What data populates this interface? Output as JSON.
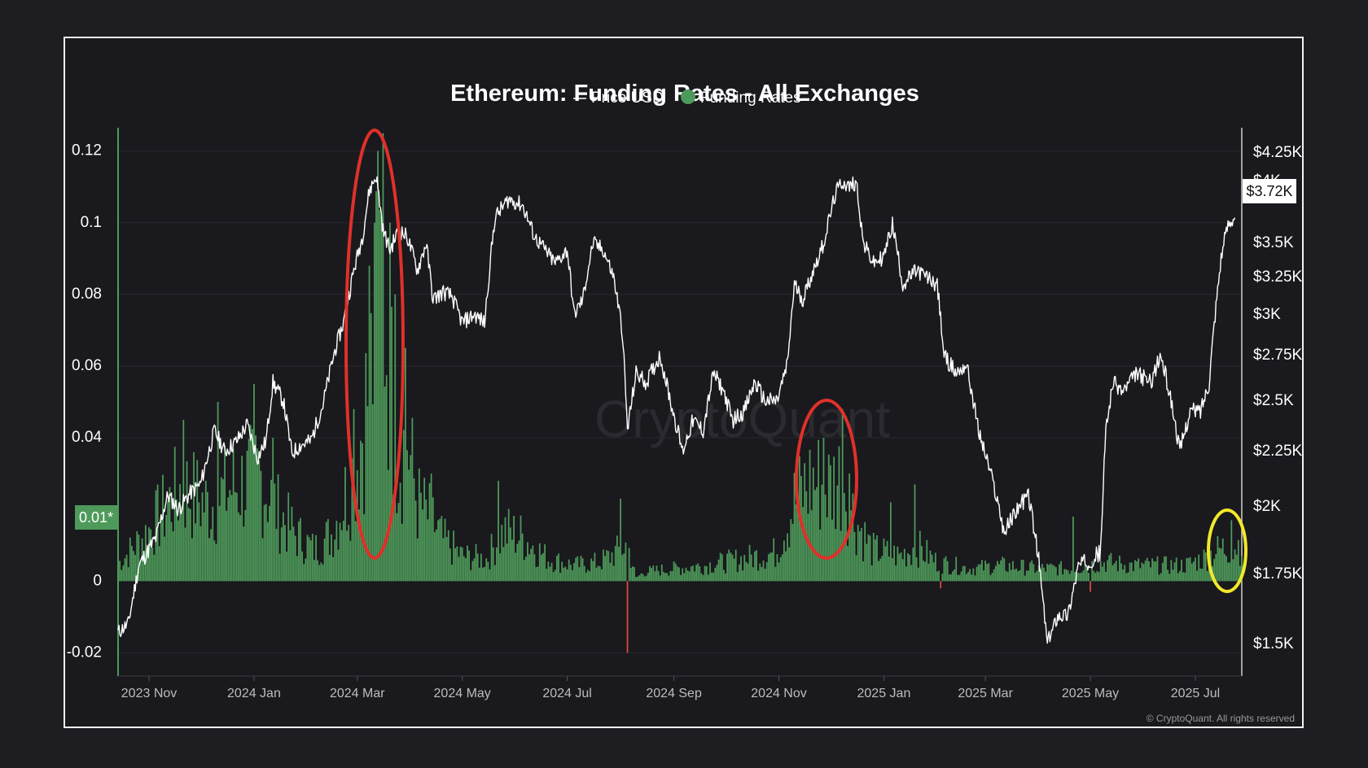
{
  "chart_data": {
    "type": "bar",
    "title": "Ethereum: Funding Rates - All Exchanges",
    "legend": [
      {
        "name": "Price USD",
        "color": "#ffffff",
        "marker": "line"
      },
      {
        "name": "Funding Rates",
        "color": "#4e9a5a",
        "marker": "dot"
      }
    ],
    "left_axis": {
      "ticks": [
        "0.12",
        "0.1",
        "0.08",
        "0.06",
        "0.04",
        "0",
        "-0.02"
      ],
      "tick_values": [
        0.12,
        0.1,
        0.08,
        0.06,
        0.04,
        0,
        -0.02
      ],
      "range": [
        -0.0265,
        0.1265
      ]
    },
    "right_axis": {
      "ticks": [
        "$4.25K",
        "$4K",
        "$3.5K",
        "$3.25K",
        "$3K",
        "$2.75K",
        "$2.5K",
        "$2.25K",
        "$2K",
        "$1.75K",
        "$1.5K"
      ],
      "tick_values": [
        4250,
        4000,
        3500,
        3250,
        3000,
        2750,
        2500,
        2250,
        2000,
        1750,
        1500
      ]
    },
    "x_ticks": [
      "2023 Nov",
      "2024 Jan",
      "2024 Mar",
      "2024 May",
      "2024 Jul",
      "2024 Sep",
      "2024 Nov",
      "2025 Jan",
      "2025 Mar",
      "2025 May",
      "2025 Jul"
    ],
    "x_tick_dates": [
      "2023-11-01",
      "2024-01-01",
      "2024-03-01",
      "2024-05-01",
      "2024-07-01",
      "2024-09-01",
      "2024-11-01",
      "2025-01-01",
      "2025-03-01",
      "2025-05-01",
      "2025-07-01"
    ],
    "x_range": [
      "2023-10-14",
      "2025-07-28"
    ],
    "reference_badge": "0.01*",
    "price_badge": "$3.72K",
    "funding_anchors": [
      [
        "2023-10-15",
        0.006
      ],
      [
        "2023-11-01",
        0.016
      ],
      [
        "2023-11-20",
        0.03
      ],
      [
        "2023-12-05",
        0.024
      ],
      [
        "2023-12-20",
        0.03
      ],
      [
        "2024-01-05",
        0.033
      ],
      [
        "2024-01-15",
        0.022
      ],
      [
        "2024-01-25",
        0.015
      ],
      [
        "2024-02-05",
        0.01
      ],
      [
        "2024-02-15",
        0.015
      ],
      [
        "2024-02-25",
        0.03
      ],
      [
        "2024-03-01",
        0.04
      ],
      [
        "2024-03-05",
        0.052
      ],
      [
        "2024-03-10",
        0.07
      ],
      [
        "2024-03-15",
        0.1
      ],
      [
        "2024-03-20",
        0.065
      ],
      [
        "2024-03-25",
        0.04
      ],
      [
        "2024-03-30",
        0.045
      ],
      [
        "2024-04-05",
        0.025
      ],
      [
        "2024-04-12",
        0.02
      ],
      [
        "2024-04-20",
        0.013
      ],
      [
        "2024-05-01",
        0.008
      ],
      [
        "2024-05-15",
        0.007
      ],
      [
        "2024-05-25",
        0.016
      ],
      [
        "2024-06-05",
        0.014
      ],
      [
        "2024-06-20",
        0.007
      ],
      [
        "2024-07-05",
        0.005
      ],
      [
        "2024-07-20",
        0.006
      ],
      [
        "2024-08-01",
        0.01
      ],
      [
        "2024-08-05",
        0.012
      ],
      [
        "2024-08-10",
        0.001
      ],
      [
        "2024-08-15",
        0.003
      ],
      [
        "2024-09-01",
        0.004
      ],
      [
        "2024-09-20",
        0.005
      ],
      [
        "2024-10-10",
        0.007
      ],
      [
        "2024-10-30",
        0.009
      ],
      [
        "2024-11-10",
        0.025
      ],
      [
        "2024-11-20",
        0.032
      ],
      [
        "2024-12-01",
        0.03
      ],
      [
        "2024-12-08",
        0.034
      ],
      [
        "2024-12-15",
        0.02
      ],
      [
        "2024-12-25",
        0.01
      ],
      [
        "2025-01-10",
        0.008
      ],
      [
        "2025-01-20",
        0.011
      ],
      [
        "2025-02-01",
        0.006
      ],
      [
        "2025-02-20",
        0.004
      ],
      [
        "2025-03-10",
        0.005
      ],
      [
        "2025-04-01",
        0.004
      ],
      [
        "2025-04-20",
        0.004
      ],
      [
        "2025-05-10",
        0.006
      ],
      [
        "2025-05-25",
        0.005
      ],
      [
        "2025-06-10",
        0.005
      ],
      [
        "2025-06-25",
        0.005
      ],
      [
        "2025-07-05",
        0.007
      ],
      [
        "2025-07-15",
        0.01
      ],
      [
        "2025-07-27",
        0.012
      ]
    ],
    "funding_spikes": [
      [
        "2023-11-21",
        0.045
      ],
      [
        "2023-12-11",
        0.05
      ],
      [
        "2024-01-01",
        0.055
      ],
      [
        "2024-01-12",
        0.04
      ],
      [
        "2024-02-28",
        0.048
      ],
      [
        "2024-03-08",
        0.088
      ],
      [
        "2024-03-11",
        0.1
      ],
      [
        "2024-03-13",
        0.12
      ],
      [
        "2024-03-16",
        0.125
      ],
      [
        "2024-03-20",
        0.1
      ],
      [
        "2024-03-23",
        0.08
      ],
      [
        "2024-03-29",
        0.065
      ],
      [
        "2024-04-13",
        0.03
      ],
      [
        "2024-05-22",
        0.028
      ],
      [
        "2024-08-01",
        0.023
      ],
      [
        "2024-08-05",
        -0.02
      ],
      [
        "2024-11-27",
        0.04
      ],
      [
        "2024-12-08",
        0.048
      ],
      [
        "2024-12-12",
        0.03
      ],
      [
        "2025-01-05",
        0.022
      ],
      [
        "2025-01-19",
        0.027
      ],
      [
        "2025-02-03",
        -0.002
      ],
      [
        "2025-04-21",
        0.018
      ],
      [
        "2025-05-01",
        -0.003
      ],
      [
        "2025-07-22",
        0.017
      ]
    ],
    "price_anchors": [
      [
        "2023-10-14",
        1540
      ],
      [
        "2023-10-20",
        1570
      ],
      [
        "2023-10-26",
        1780
      ],
      [
        "2023-11-05",
        1880
      ],
      [
        "2023-11-12",
        2050
      ],
      [
        "2023-11-18",
        1990
      ],
      [
        "2023-11-25",
        2060
      ],
      [
        "2023-12-01",
        2100
      ],
      [
        "2023-12-09",
        2350
      ],
      [
        "2023-12-15",
        2250
      ],
      [
        "2023-12-22",
        2300
      ],
      [
        "2023-12-28",
        2380
      ],
      [
        "2024-01-03",
        2220
      ],
      [
        "2024-01-08",
        2300
      ],
      [
        "2024-01-12",
        2600
      ],
      [
        "2024-01-18",
        2500
      ],
      [
        "2024-01-23",
        2240
      ],
      [
        "2024-01-28",
        2280
      ],
      [
        "2024-02-03",
        2300
      ],
      [
        "2024-02-10",
        2480
      ],
      [
        "2024-02-17",
        2780
      ],
      [
        "2024-02-22",
        2950
      ],
      [
        "2024-02-28",
        3300
      ],
      [
        "2024-03-04",
        3550
      ],
      [
        "2024-03-08",
        3920
      ],
      [
        "2024-03-12",
        4050
      ],
      [
        "2024-03-16",
        3600
      ],
      [
        "2024-03-20",
        3450
      ],
      [
        "2024-03-25",
        3600
      ],
      [
        "2024-03-30",
        3550
      ],
      [
        "2024-04-05",
        3300
      ],
      [
        "2024-04-10",
        3500
      ],
      [
        "2024-04-14",
        3100
      ],
      [
        "2024-04-20",
        3150
      ],
      [
        "2024-04-25",
        3120
      ],
      [
        "2024-05-01",
        2950
      ],
      [
        "2024-05-08",
        3000
      ],
      [
        "2024-05-14",
        2950
      ],
      [
        "2024-05-20",
        3700
      ],
      [
        "2024-05-28",
        3850
      ],
      [
        "2024-06-05",
        3800
      ],
      [
        "2024-06-12",
        3550
      ],
      [
        "2024-06-18",
        3450
      ],
      [
        "2024-06-24",
        3350
      ],
      [
        "2024-07-01",
        3450
      ],
      [
        "2024-07-05",
        3000
      ],
      [
        "2024-07-10",
        3100
      ],
      [
        "2024-07-16",
        3500
      ],
      [
        "2024-07-22",
        3450
      ],
      [
        "2024-07-28",
        3250
      ],
      [
        "2024-08-02",
        2900
      ],
      [
        "2024-08-05",
        2350
      ],
      [
        "2024-08-10",
        2650
      ],
      [
        "2024-08-16",
        2600
      ],
      [
        "2024-08-24",
        2750
      ],
      [
        "2024-08-30",
        2500
      ],
      [
        "2024-09-06",
        2250
      ],
      [
        "2024-09-12",
        2400
      ],
      [
        "2024-09-18",
        2350
      ],
      [
        "2024-09-24",
        2650
      ],
      [
        "2024-09-30",
        2550
      ],
      [
        "2024-10-05",
        2400
      ],
      [
        "2024-10-12",
        2450
      ],
      [
        "2024-10-18",
        2600
      ],
      [
        "2024-10-24",
        2500
      ],
      [
        "2024-10-31",
        2500
      ],
      [
        "2024-11-06",
        2700
      ],
      [
        "2024-11-10",
        3200
      ],
      [
        "2024-11-15",
        3100
      ],
      [
        "2024-11-21",
        3300
      ],
      [
        "2024-11-27",
        3500
      ],
      [
        "2024-12-04",
        3900
      ],
      [
        "2024-12-08",
        4000
      ],
      [
        "2024-12-12",
        3950
      ],
      [
        "2024-12-16",
        4000
      ],
      [
        "2024-12-20",
        3500
      ],
      [
        "2024-12-26",
        3350
      ],
      [
        "2025-01-01",
        3400
      ],
      [
        "2025-01-06",
        3650
      ],
      [
        "2025-01-12",
        3200
      ],
      [
        "2025-01-20",
        3300
      ],
      [
        "2025-01-26",
        3250
      ],
      [
        "2025-02-01",
        3200
      ],
      [
        "2025-02-05",
        2750
      ],
      [
        "2025-02-12",
        2650
      ],
      [
        "2025-02-18",
        2700
      ],
      [
        "2025-02-25",
        2350
      ],
      [
        "2025-03-04",
        2150
      ],
      [
        "2025-03-12",
        1900
      ],
      [
        "2025-03-20",
        2000
      ],
      [
        "2025-03-26",
        2050
      ],
      [
        "2025-04-01",
        1800
      ],
      [
        "2025-04-06",
        1500
      ],
      [
        "2025-04-12",
        1600
      ],
      [
        "2025-04-18",
        1600
      ],
      [
        "2025-04-24",
        1780
      ],
      [
        "2025-05-01",
        1800
      ],
      [
        "2025-05-07",
        1830
      ],
      [
        "2025-05-10",
        2350
      ],
      [
        "2025-05-14",
        2600
      ],
      [
        "2025-05-20",
        2550
      ],
      [
        "2025-05-28",
        2650
      ],
      [
        "2025-06-05",
        2600
      ],
      [
        "2025-06-11",
        2750
      ],
      [
        "2025-06-17",
        2500
      ],
      [
        "2025-06-22",
        2250
      ],
      [
        "2025-06-28",
        2450
      ],
      [
        "2025-07-04",
        2450
      ],
      [
        "2025-07-09",
        2600
      ],
      [
        "2025-07-12",
        2950
      ],
      [
        "2025-07-16",
        3400
      ],
      [
        "2025-07-20",
        3650
      ],
      [
        "2025-07-24",
        3720
      ]
    ]
  },
  "watermark": "CryptoQuant",
  "copyright": "© CryptoQuant. All rights reserved",
  "annotations": [
    {
      "shape": "ellipse",
      "color": "#e0302a",
      "around": "2024 Mar funding spike"
    },
    {
      "shape": "ellipse",
      "color": "#e0302a",
      "around": "2024 Nov–Dec funding spike"
    },
    {
      "shape": "ellipse",
      "color": "#f2e82a",
      "around": "2025 Jul latest funding"
    }
  ]
}
